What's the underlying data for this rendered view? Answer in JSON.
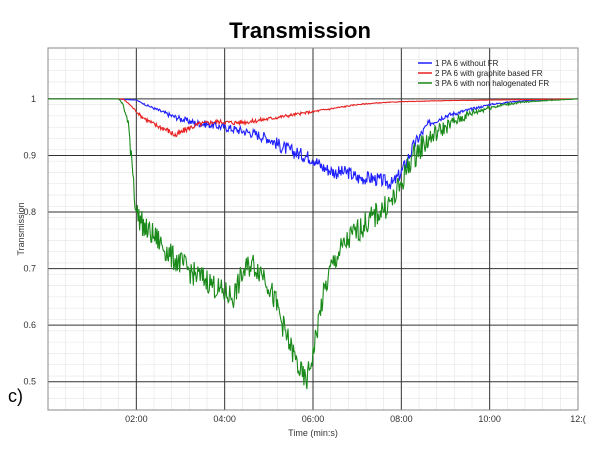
{
  "panel_label": "c)",
  "chart_data": {
    "type": "line",
    "title": "Transmission",
    "xlabel": "Time (min:s)",
    "ylabel": "Transmission",
    "xlim_min": [
      0,
      12
    ],
    "ylim": [
      0.45,
      1.09
    ],
    "x_ticks": [
      2,
      4,
      6,
      8,
      10,
      12
    ],
    "x_tick_labels": [
      "02:00",
      "04:00",
      "06:00",
      "08:00",
      "10:00",
      "12:("
    ],
    "y_ticks": [
      0.5,
      0.6,
      0.7,
      0.8,
      0.9,
      1
    ],
    "y_tick_labels": [
      "0.5",
      "0.6",
      "0.7",
      "0.8",
      "0.9",
      "1"
    ],
    "grid": true,
    "legend_position": "top-right",
    "series": [
      {
        "name": "1 PA 6 without FR",
        "color": "#1f1fff",
        "x": [
          0,
          1.5,
          2,
          2.2,
          2.5,
          2.8,
          3,
          3.3,
          3.6,
          4,
          4.3,
          4.6,
          5,
          5.3,
          5.6,
          6,
          6.2,
          6.5,
          6.8,
          7,
          7.3,
          7.6,
          7.8,
          8,
          8.3,
          8.6,
          9,
          9.5,
          10,
          10.5,
          11,
          12
        ],
        "y": [
          1,
          1,
          0.998,
          0.99,
          0.98,
          0.97,
          0.965,
          0.958,
          0.955,
          0.95,
          0.945,
          0.94,
          0.93,
          0.915,
          0.905,
          0.895,
          0.88,
          0.87,
          0.87,
          0.86,
          0.86,
          0.855,
          0.85,
          0.87,
          0.92,
          0.955,
          0.97,
          0.98,
          0.99,
          0.995,
          0.998,
          1
        ]
      },
      {
        "name": "2 PA 6 with graphite based FR",
        "color": "#e82020",
        "x": [
          0,
          1.7,
          1.85,
          2.1,
          2.4,
          2.7,
          2.9,
          3.1,
          3.4,
          3.8,
          4.2,
          4.6,
          5,
          5.4,
          5.8,
          6.2,
          6.6,
          7,
          7.5,
          8,
          9,
          10,
          12
        ],
        "y": [
          1,
          1,
          0.99,
          0.97,
          0.955,
          0.945,
          0.935,
          0.945,
          0.955,
          0.96,
          0.958,
          0.96,
          0.965,
          0.97,
          0.975,
          0.98,
          0.985,
          0.99,
          0.993,
          0.995,
          0.997,
          0.998,
          1
        ]
      },
      {
        "name": "3 PA 6 with non halogenated FR",
        "color": "#1a8a1a",
        "x": [
          0,
          1.6,
          1.7,
          1.8,
          1.9,
          1.95,
          2,
          2.2,
          2.5,
          2.8,
          3,
          3.3,
          3.6,
          3.9,
          4.2,
          4.4,
          4.6,
          4.9,
          5.2,
          5.4,
          5.6,
          5.75,
          5.85,
          6,
          6.2,
          6.4,
          6.6,
          6.9,
          7.2,
          7.5,
          7.8,
          8,
          8.2,
          8.5,
          8.8,
          9.2,
          9.6,
          10,
          10.5,
          11,
          12
        ],
        "y": [
          1,
          1,
          0.99,
          0.96,
          0.9,
          0.84,
          0.8,
          0.77,
          0.75,
          0.72,
          0.71,
          0.69,
          0.68,
          0.66,
          0.65,
          0.69,
          0.71,
          0.69,
          0.63,
          0.58,
          0.54,
          0.51,
          0.5,
          0.55,
          0.64,
          0.7,
          0.73,
          0.76,
          0.78,
          0.8,
          0.82,
          0.85,
          0.89,
          0.92,
          0.94,
          0.96,
          0.975,
          0.985,
          0.992,
          0.996,
          1
        ]
      }
    ]
  }
}
